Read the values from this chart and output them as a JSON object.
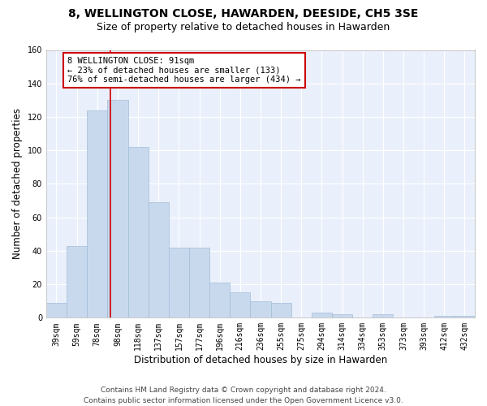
{
  "title": "8, WELLINGTON CLOSE, HAWARDEN, DEESIDE, CH5 3SE",
  "subtitle": "Size of property relative to detached houses in Hawarden",
  "xlabel": "Distribution of detached houses by size in Hawarden",
  "ylabel": "Number of detached properties",
  "bar_color": "#c9d9ed",
  "bar_edgecolor": "#a0bcd8",
  "background_color": "#eaf0fb",
  "grid_color": "#ffffff",
  "categories": [
    "39sqm",
    "59sqm",
    "78sqm",
    "98sqm",
    "118sqm",
    "137sqm",
    "157sqm",
    "177sqm",
    "196sqm",
    "216sqm",
    "236sqm",
    "255sqm",
    "275sqm",
    "294sqm",
    "314sqm",
    "334sqm",
    "353sqm",
    "373sqm",
    "393sqm",
    "412sqm",
    "432sqm"
  ],
  "values": [
    9,
    43,
    124,
    130,
    102,
    69,
    42,
    42,
    21,
    15,
    10,
    9,
    0,
    3,
    2,
    0,
    2,
    0,
    0,
    1,
    1
  ],
  "annotation_text": "8 WELLINGTON CLOSE: 91sqm\n← 23% of detached houses are smaller (133)\n76% of semi-detached houses are larger (434) →",
  "annotation_box_color": "#ffffff",
  "annotation_edge_color": "#cc0000",
  "ylim": [
    0,
    160
  ],
  "yticks": [
    0,
    20,
    40,
    60,
    80,
    100,
    120,
    140,
    160
  ],
  "red_line_color": "#cc0000",
  "footer_text": "Contains HM Land Registry data © Crown copyright and database right 2024.\nContains public sector information licensed under the Open Government Licence v3.0.",
  "title_fontsize": 10,
  "subtitle_fontsize": 9,
  "xlabel_fontsize": 8.5,
  "ylabel_fontsize": 8.5,
  "tick_fontsize": 7,
  "annotation_fontsize": 7.5,
  "footer_fontsize": 6.5,
  "fig_bg": "#ffffff"
}
